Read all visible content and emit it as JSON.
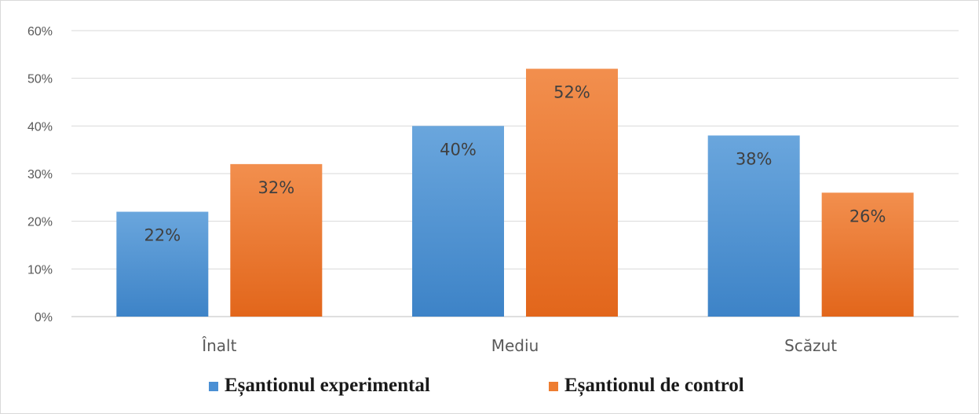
{
  "chart_data": {
    "type": "bar",
    "categories": [
      "Înalt",
      "Mediu",
      "Scăzut"
    ],
    "series": [
      {
        "name": "Eșantionul experimental",
        "values": [
          22,
          40,
          38
        ],
        "color": "#4a8fd4",
        "labels": [
          "22%",
          "40%",
          "38%"
        ]
      },
      {
        "name": "Eșantionul de control",
        "values": [
          32,
          52,
          26
        ],
        "color": "#ee7d31",
        "labels": [
          "32%",
          "52%",
          "26%"
        ]
      }
    ],
    "ylim": [
      0,
      60
    ],
    "yticks": [
      0,
      10,
      20,
      30,
      40,
      50,
      60
    ],
    "ytick_labels": [
      "0%",
      "10%",
      "20%",
      "30%",
      "40%",
      "50%",
      "60%"
    ],
    "title": "",
    "xlabel": "",
    "ylabel": "",
    "grid": true,
    "legend_position": "bottom"
  }
}
